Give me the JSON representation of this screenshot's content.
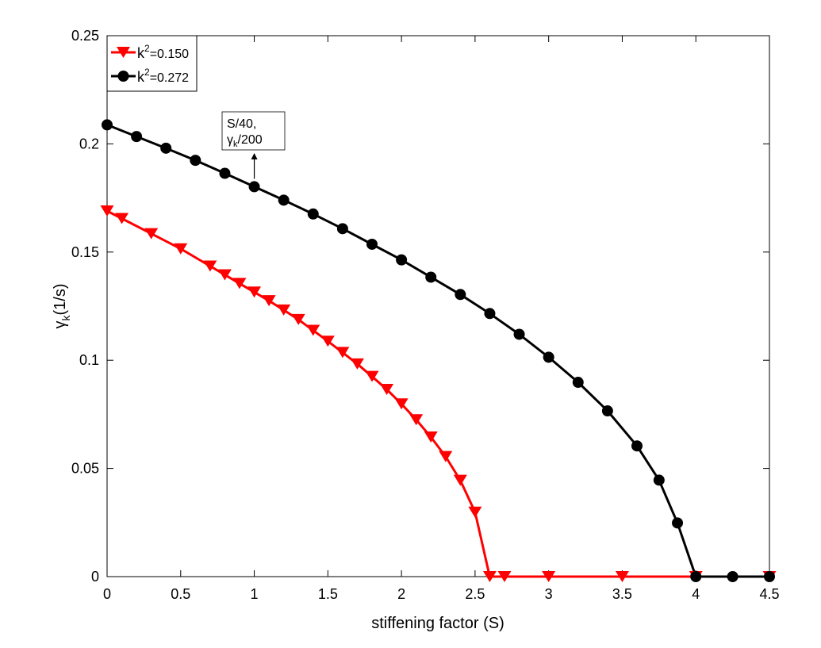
{
  "chart_data": {
    "type": "line",
    "title": "",
    "xlabel": "stiffening factor (S)",
    "ylabel": {
      "base": "γ",
      "sub": "k",
      "rest": "(1/s)"
    },
    "xlim": [
      0,
      4.5
    ],
    "ylim": [
      0,
      0.25
    ],
    "xticks": [
      0,
      0.5,
      1,
      1.5,
      2,
      2.5,
      3,
      3.5,
      4,
      4.5
    ],
    "xtick_labels": [
      "0",
      "0.5",
      "1",
      "1.5",
      "2",
      "2.5",
      "3",
      "3.5",
      "4",
      "4.5"
    ],
    "yticks": [
      0,
      0.05,
      0.1,
      0.15,
      0.2,
      0.25
    ],
    "ytick_labels": [
      "0",
      "0.05",
      "0.1",
      "0.15",
      "0.2",
      "0.25"
    ],
    "grid": false,
    "legend_position": "top-left",
    "series": [
      {
        "legend": {
          "base": "k",
          "sup": "2",
          "rest": "=0.150"
        },
        "color": "#ff0000",
        "marker": "triangle-down",
        "x": [
          0,
          0.1,
          0.3,
          0.5,
          0.7,
          0.8,
          0.9,
          1.0,
          1.1,
          1.2,
          1.3,
          1.4,
          1.5,
          1.6,
          1.7,
          1.8,
          1.9,
          2.0,
          2.1,
          2.2,
          2.3,
          2.4,
          2.5,
          2.6,
          2.7,
          3.0,
          3.5,
          4.0,
          4.5
        ],
        "y": [
          0.169,
          0.1655,
          0.1585,
          0.1515,
          0.1435,
          0.1395,
          0.1355,
          0.1315,
          0.1275,
          0.1232,
          0.1188,
          0.1138,
          0.1088,
          0.1036,
          0.0983,
          0.0925,
          0.0865,
          0.0798,
          0.0725,
          0.0645,
          0.0555,
          0.0445,
          0.0298,
          0,
          0,
          0,
          0,
          0,
          0
        ]
      },
      {
        "legend": {
          "base": "k",
          "sup": "2",
          "rest": "=0.272"
        },
        "color": "#000000",
        "marker": "circle",
        "x": [
          0,
          0.2,
          0.4,
          0.6,
          0.8,
          1.0,
          1.2,
          1.4,
          1.6,
          1.8,
          2.0,
          2.2,
          2.4,
          2.6,
          2.8,
          3.0,
          3.2,
          3.4,
          3.6,
          3.75,
          3.875,
          4.0,
          4.25,
          4.5
        ],
        "y": [
          0.2088,
          0.2034,
          0.198,
          0.1924,
          0.1864,
          0.1802,
          0.174,
          0.1676,
          0.1608,
          0.1536,
          0.1464,
          0.1384,
          0.1304,
          0.1216,
          0.112,
          0.1014,
          0.0898,
          0.0766,
          0.0604,
          0.0446,
          0.0248,
          0,
          0,
          0
        ]
      }
    ],
    "annotation": {
      "line1": "S/40,",
      "line2": {
        "base": "γ",
        "sub": "k",
        "rest": "/200"
      },
      "arrow_points_to": [
        1.0,
        0.1802
      ]
    }
  }
}
